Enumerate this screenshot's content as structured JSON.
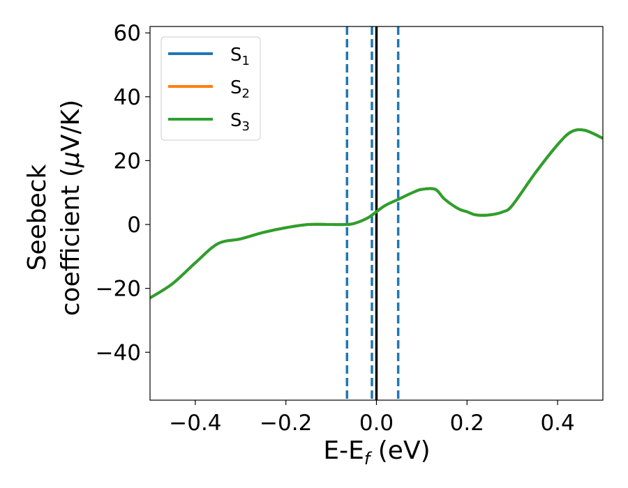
{
  "chart_data": {
    "type": "line",
    "xlabel": {
      "main": "E-E",
      "sub": "f",
      "suffix": " (eV)"
    },
    "ylabel": {
      "line1": "Seebeck",
      "line2_prefix": "coefficient  (",
      "mu": "μ",
      "line2_suffix": "V/K)"
    },
    "xlim": [
      -0.5,
      0.5
    ],
    "ylim": [
      -55,
      62
    ],
    "xticks": [
      -0.4,
      -0.2,
      0.0,
      0.2,
      0.4
    ],
    "xtick_labels": [
      "−0.4",
      "−0.2",
      "0.0",
      "0.2",
      "0.4"
    ],
    "yticks": [
      -40,
      -20,
      0,
      20,
      40,
      60
    ],
    "ytick_labels": [
      "−40",
      "−20",
      "0",
      "20",
      "40",
      "60"
    ],
    "grid": false,
    "legend_position": "top-left",
    "vertical_lines": [
      {
        "x": -0.065,
        "style": "dashed",
        "color": "#1f77b4"
      },
      {
        "x": -0.01,
        "style": "dashed",
        "color": "#1f77b4"
      },
      {
        "x": 0.048,
        "style": "dashed",
        "color": "#1f77b4"
      },
      {
        "x": 0.0,
        "style": "solid",
        "color": "#000000"
      }
    ],
    "series": [
      {
        "name": {
          "base": "S",
          "sub": "1"
        },
        "color": "#1f77b4",
        "x": [
          -0.5,
          -0.45,
          -0.4,
          -0.35,
          -0.3,
          -0.25,
          -0.2,
          -0.15,
          -0.1,
          -0.07,
          -0.05,
          -0.02,
          0.0,
          0.02,
          0.05,
          0.08,
          0.1,
          0.13,
          0.15,
          0.18,
          0.2,
          0.22,
          0.25,
          0.28,
          0.3,
          0.35,
          0.4,
          0.43,
          0.46,
          0.5
        ],
        "values": [
          -23,
          -18.5,
          -12,
          -6,
          -4.5,
          -2.5,
          -1,
          0,
          0,
          0,
          0.3,
          2,
          4,
          6,
          8,
          10,
          11,
          11,
          8,
          5,
          4,
          3,
          3,
          4,
          6,
          16,
          25,
          29,
          29.5,
          27
        ]
      },
      {
        "name": {
          "base": "S",
          "sub": "2"
        },
        "color": "#ff7f0e",
        "x": [
          -0.5,
          -0.45,
          -0.4,
          -0.35,
          -0.3,
          -0.25,
          -0.2,
          -0.15,
          -0.1,
          -0.07,
          -0.05,
          -0.02,
          0.0,
          0.02,
          0.05,
          0.08,
          0.1,
          0.13,
          0.15,
          0.18,
          0.2,
          0.22,
          0.25,
          0.28,
          0.3,
          0.35,
          0.4,
          0.43,
          0.46,
          0.5
        ],
        "values": [
          -23,
          -18.5,
          -12,
          -6,
          -4.5,
          -2.5,
          -1,
          0,
          0,
          0,
          0.3,
          2,
          4,
          6,
          8,
          10,
          11,
          11,
          8,
          5,
          4,
          3,
          3,
          4,
          6,
          16,
          25,
          29,
          29.5,
          27
        ]
      },
      {
        "name": {
          "base": "S",
          "sub": "3"
        },
        "color": "#2ca02c",
        "x": [
          -0.5,
          -0.45,
          -0.4,
          -0.35,
          -0.3,
          -0.25,
          -0.2,
          -0.15,
          -0.1,
          -0.07,
          -0.05,
          -0.02,
          0.0,
          0.02,
          0.05,
          0.08,
          0.1,
          0.13,
          0.15,
          0.18,
          0.2,
          0.22,
          0.25,
          0.28,
          0.3,
          0.35,
          0.4,
          0.43,
          0.46,
          0.5
        ],
        "values": [
          -23,
          -18.5,
          -12,
          -6,
          -4.5,
          -2.5,
          -1,
          0,
          0,
          0,
          0.3,
          2,
          4,
          6,
          8,
          10,
          11,
          11,
          8,
          5,
          4,
          3,
          3,
          4,
          6,
          16,
          25,
          29,
          29.5,
          27
        ]
      }
    ]
  }
}
